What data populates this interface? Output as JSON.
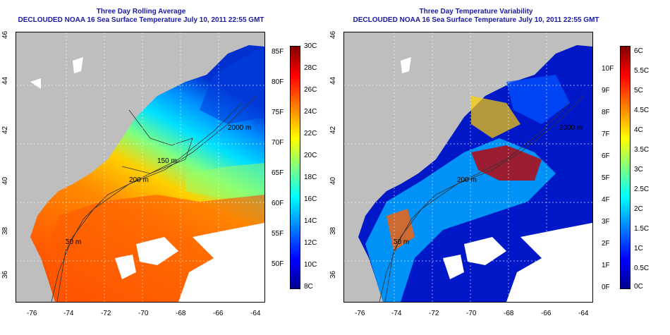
{
  "left": {
    "title1": "Three Day Rolling Average",
    "title2": "DECLOUDED NOAA 16 Sea Surface Temperature July 10, 2011 22:55 GMT",
    "x_ticks": [
      "-76",
      "-74",
      "-72",
      "-70",
      "-68",
      "-66",
      "-64"
    ],
    "y_ticks": [
      "36",
      "38",
      "40",
      "42",
      "44",
      "46"
    ],
    "contour_labels": [
      "2000 m",
      "200 m",
      "50 m",
      "150 m"
    ],
    "colorbar_celsius": [
      "30C",
      "28C",
      "26C",
      "24C",
      "22C",
      "20C",
      "18C",
      "16C",
      "14C",
      "12C",
      "10C",
      "8C"
    ],
    "colorbar_fahrenheit": [
      "85F",
      "80F",
      "75F",
      "70F",
      "65F",
      "60F",
      "55F",
      "50F"
    ]
  },
  "right": {
    "title1": "Three Day Temperature Variability",
    "title2": "DECLOUDED NOAA 16 Sea Surface Temperature July 10, 2011 22:55 GMT",
    "x_ticks": [
      "-76",
      "-74",
      "-72",
      "-70",
      "-68",
      "-66",
      "-64"
    ],
    "y_ticks": [
      "36",
      "38",
      "40",
      "42",
      "44",
      "46"
    ],
    "contour_labels": [
      "2000 m",
      "200 m",
      "50 m"
    ],
    "colorbar_celsius": [
      "6C",
      "5.5C",
      "5C",
      "4.5C",
      "4C",
      "3.5C",
      "3C",
      "2.5C",
      "2C",
      "1.5C",
      "1C",
      "0.5C",
      "0C"
    ],
    "colorbar_fahrenheit": [
      "10F",
      "9F",
      "8F",
      "7F",
      "6F",
      "5F",
      "4F",
      "3F",
      "2F",
      "1F",
      "0F"
    ]
  },
  "colors": {
    "title": "#1a1aa6",
    "land": "#bebebe",
    "cloud": "#ffffff",
    "jet": [
      "#00008f",
      "#0000ff",
      "#0080ff",
      "#00ffff",
      "#80ff80",
      "#ffff00",
      "#ff8000",
      "#ff0000",
      "#800000"
    ]
  }
}
